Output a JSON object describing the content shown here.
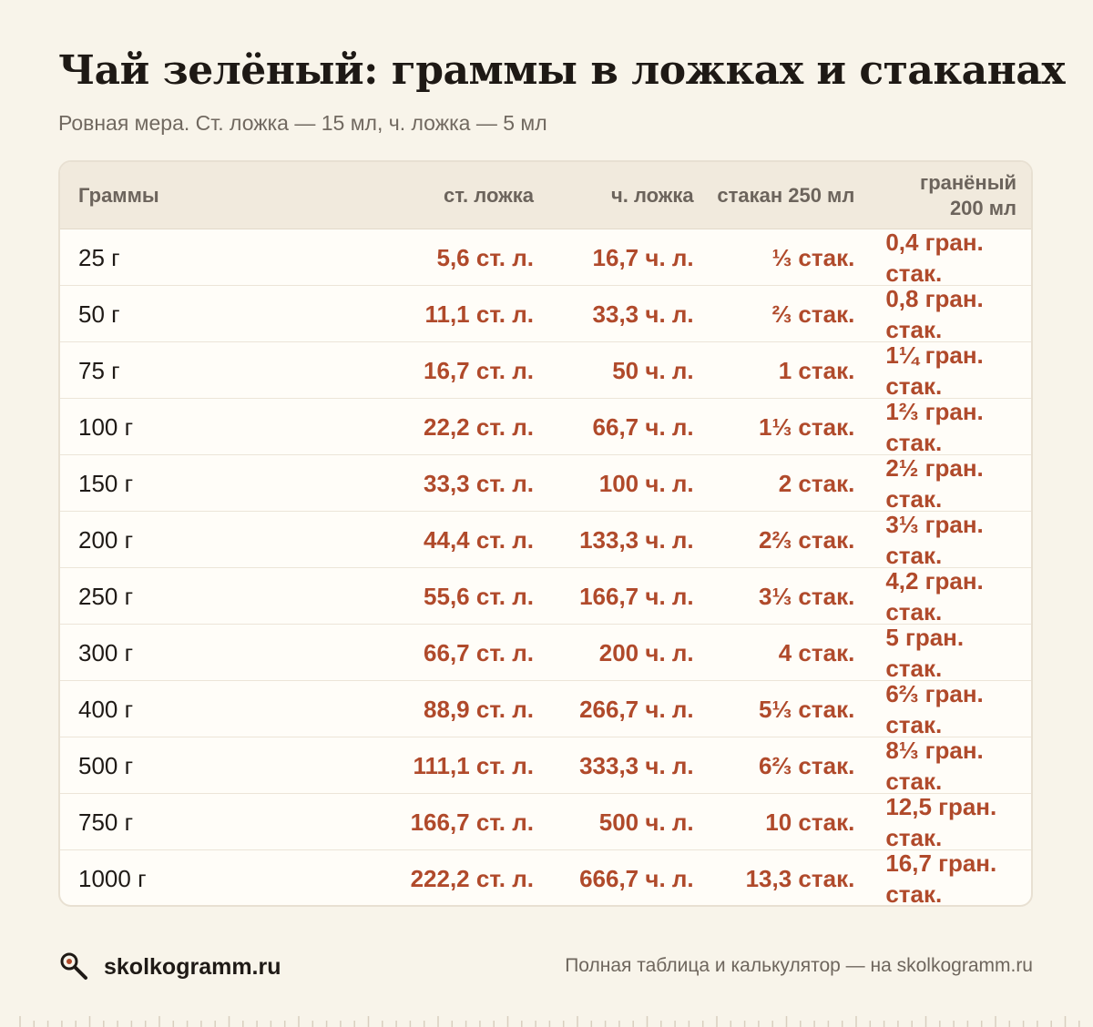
{
  "page": {
    "title": "Чай зелёный: граммы в ложках и стаканах",
    "subtitle": "Ровная мера. Ст. ложка — 15 мл, ч. ложка — 5 мл"
  },
  "table": {
    "headers": [
      "Граммы",
      "ст. ложка",
      "ч. ложка",
      "стакан 250 мл",
      "гранёный 200 мл"
    ],
    "rows": [
      [
        "25 г",
        "5,6 ст. л.",
        "16,7 ч. л.",
        "⅓ стак.",
        "0,4 гран. стак."
      ],
      [
        "50 г",
        "11,1 ст. л.",
        "33,3 ч. л.",
        "⅔ стак.",
        "0,8 гран. стак."
      ],
      [
        "75 г",
        "16,7 ст. л.",
        "50 ч. л.",
        "1 стак.",
        "1¼ гран. стак."
      ],
      [
        "100 г",
        "22,2 ст. л.",
        "66,7 ч. л.",
        "1⅓ стак.",
        "1⅔ гран. стак."
      ],
      [
        "150 г",
        "33,3 ст. л.",
        "100 ч. л.",
        "2 стак.",
        "2½ гран. стак."
      ],
      [
        "200 г",
        "44,4 ст. л.",
        "133,3 ч. л.",
        "2⅔ стак.",
        "3⅓ гран. стак."
      ],
      [
        "250 г",
        "55,6 ст. л.",
        "166,7 ч. л.",
        "3⅓ стак.",
        "4,2 гран. стак."
      ],
      [
        "300 г",
        "66,7 ст. л.",
        "200 ч. л.",
        "4 стак.",
        "5 гран. стак."
      ],
      [
        "400 г",
        "88,9 ст. л.",
        "266,7 ч. л.",
        "5⅓ стак.",
        "6⅔ гран. стак."
      ],
      [
        "500 г",
        "111,1 ст. л.",
        "333,3 ч. л.",
        "6⅔ стак.",
        "8⅓ гран. стак."
      ],
      [
        "750 г",
        "166,7 ст. л.",
        "500 ч. л.",
        "10 стак.",
        "12,5 гран. стак."
      ],
      [
        "1000 г",
        "222,2 ст. л.",
        "666,7 ч. л.",
        "13,3 стак.",
        "16,7 гран. стак."
      ]
    ]
  },
  "footer": {
    "logo_icon": "magnifier-icon",
    "brand": "skolkogramm.ru",
    "note": "Полная таблица и калькулятор — на skolkogramm.ru"
  },
  "colors": {
    "background": "#f8f4ea",
    "accent": "#b04a2b",
    "header_bg": "#f1eadd"
  }
}
